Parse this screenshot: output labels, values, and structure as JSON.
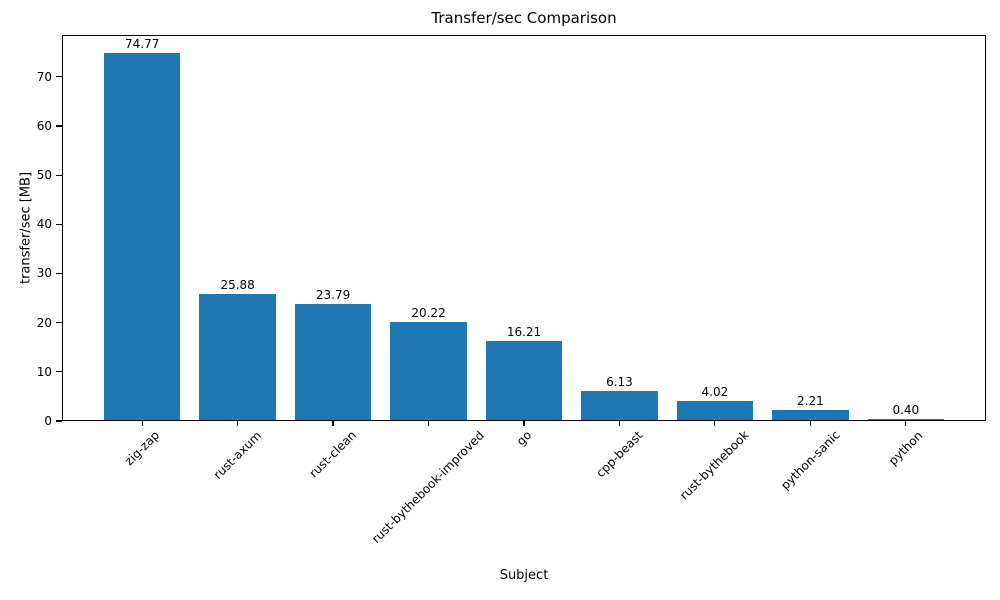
{
  "chart_data": {
    "type": "bar",
    "title": "Transfer/sec Comparison",
    "xlabel": "Subject",
    "ylabel": "transfer/sec [MB]",
    "categories": [
      "zig-zap",
      "rust-axum",
      "rust-clean",
      "rust-bythebook-improved",
      "go",
      "cpp-beast",
      "rust-bythebook",
      "python-sanic",
      "python"
    ],
    "values": [
      74.77,
      25.88,
      23.79,
      20.22,
      16.21,
      6.13,
      4.02,
      2.21,
      0.4
    ],
    "bar_labels": [
      "74.77",
      "25.88",
      "23.79",
      "20.22",
      "16.21",
      "6.13",
      "4.02",
      "2.21",
      "0.40"
    ],
    "yticks": [
      0,
      10,
      20,
      30,
      40,
      50,
      60,
      70
    ],
    "ylim": [
      0,
      78.5
    ],
    "bar_color": "#1f77b4",
    "grid": false,
    "x_tick_label_rotation": 45,
    "legend_position": "none"
  }
}
